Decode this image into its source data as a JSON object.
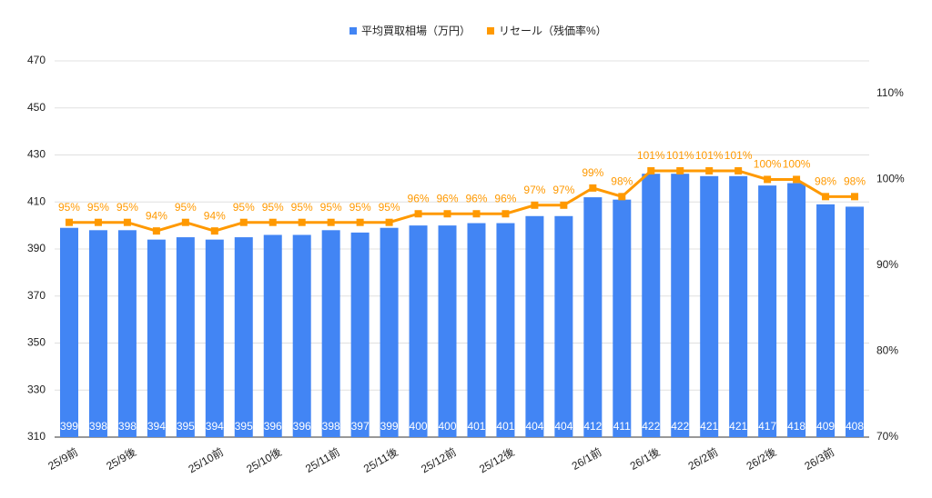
{
  "chart_data": {
    "type": "bar-line",
    "categories": [
      "25/9前",
      null,
      "25/9後",
      null,
      null,
      "25/10前",
      null,
      "25/10後",
      null,
      "25/11前",
      null,
      "25/11後",
      null,
      "25/12前",
      null,
      "25/12後",
      null,
      null,
      "26/1前",
      null,
      "26/1後",
      null,
      "26/2前",
      null,
      "26/2後",
      null,
      "26/3前",
      null
    ],
    "series": [
      {
        "name": "平均買取相場（万円）",
        "color": "#4285f4",
        "kind": "bar",
        "values": [
          399,
          398,
          398,
          394,
          395,
          394,
          395,
          396,
          396,
          398,
          397,
          399,
          400,
          400,
          401,
          401,
          404,
          404,
          412,
          411,
          422,
          422,
          421,
          421,
          417,
          418,
          409,
          408
        ]
      },
      {
        "name": "リセール（残価率%）",
        "color": "#ff9900",
        "kind": "line",
        "axis": "y2",
        "values": [
          95,
          95,
          95,
          94,
          95,
          94,
          95,
          95,
          95,
          95,
          95,
          95,
          96,
          96,
          96,
          96,
          97,
          97,
          99,
          98,
          101,
          101,
          101,
          101,
          100,
          100,
          98,
          98
        ],
        "value_labels": [
          "95%",
          "95%",
          "95%",
          "94%",
          "95%",
          "94%",
          "95%",
          "95%",
          "95%",
          "95%",
          "95%",
          "95%",
          "96%",
          "96%",
          "96%",
          "96%",
          "97%",
          "97%",
          "99%",
          "98%",
          "101%",
          "101%",
          "101%",
          "101%",
          "100%",
          "100%",
          "98%",
          "98%"
        ]
      }
    ],
    "ylim": [
      310,
      470
    ],
    "yticks": [
      310,
      330,
      350,
      370,
      390,
      410,
      430,
      450,
      470
    ],
    "y2lim": [
      70,
      113.8
    ],
    "y2ticks": [
      {
        "value": 70,
        "label": "70%"
      },
      {
        "value": 80,
        "label": "80%"
      },
      {
        "value": 90,
        "label": "90%"
      },
      {
        "value": 100,
        "label": "100%"
      },
      {
        "value": 110,
        "label": "110%"
      }
    ],
    "grid": true,
    "legend": "top"
  }
}
